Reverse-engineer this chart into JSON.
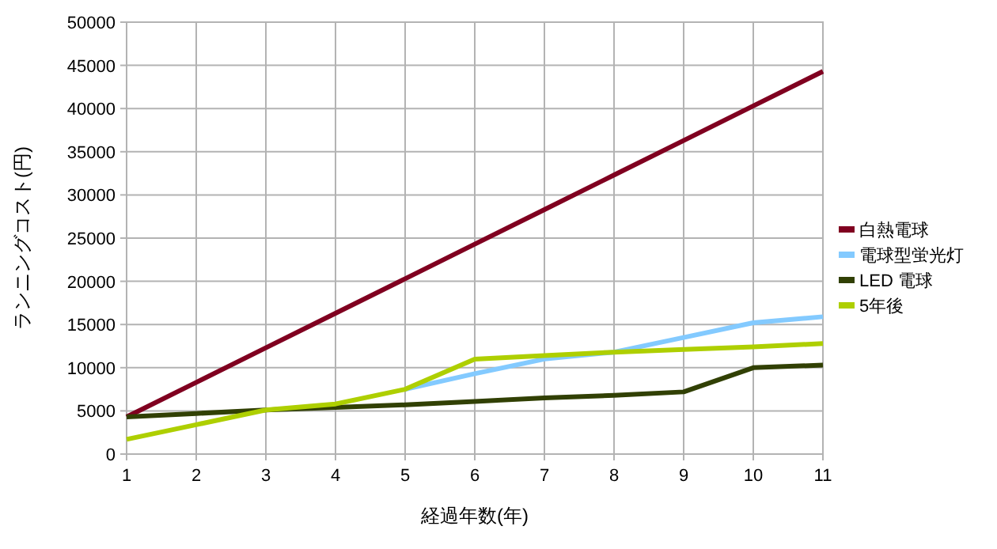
{
  "chart_data": {
    "type": "line",
    "xlabel": "経過年数(年)",
    "ylabel": "ランニングコスト(円)",
    "x": [
      1,
      2,
      3,
      4,
      5,
      6,
      7,
      8,
      9,
      10,
      11
    ],
    "series": [
      {
        "name": "白熱電球",
        "color": "#800020",
        "values": [
          4300,
          8300,
          12300,
          16300,
          20300,
          24300,
          28300,
          32300,
          36300,
          40300,
          44300
        ]
      },
      {
        "name": "電球型蛍光灯",
        "color": "#83caff",
        "values": [
          null,
          null,
          null,
          null,
          7500,
          9300,
          11000,
          11800,
          13500,
          15200,
          15900
        ]
      },
      {
        "name": "LED 電球",
        "color": "#314004",
        "values": [
          4300,
          4700,
          5100,
          5400,
          5700,
          6100,
          6500,
          6800,
          7200,
          10000,
          10300
        ]
      },
      {
        "name": "5年後",
        "color": "#aecf00",
        "values": [
          1700,
          3400,
          5100,
          5800,
          7500,
          11000,
          11400,
          11800,
          12100,
          12400,
          12800
        ]
      }
    ],
    "xlim": [
      1,
      11
    ],
    "xticks": [
      1,
      2,
      3,
      4,
      5,
      6,
      7,
      8,
      9,
      10,
      11
    ],
    "ylim": [
      0,
      50000
    ],
    "yticks": [
      0,
      5000,
      10000,
      15000,
      20000,
      25000,
      30000,
      35000,
      40000,
      45000,
      50000
    ],
    "grid": true,
    "legend": "right",
    "marker": "none",
    "line_style": "solid"
  }
}
